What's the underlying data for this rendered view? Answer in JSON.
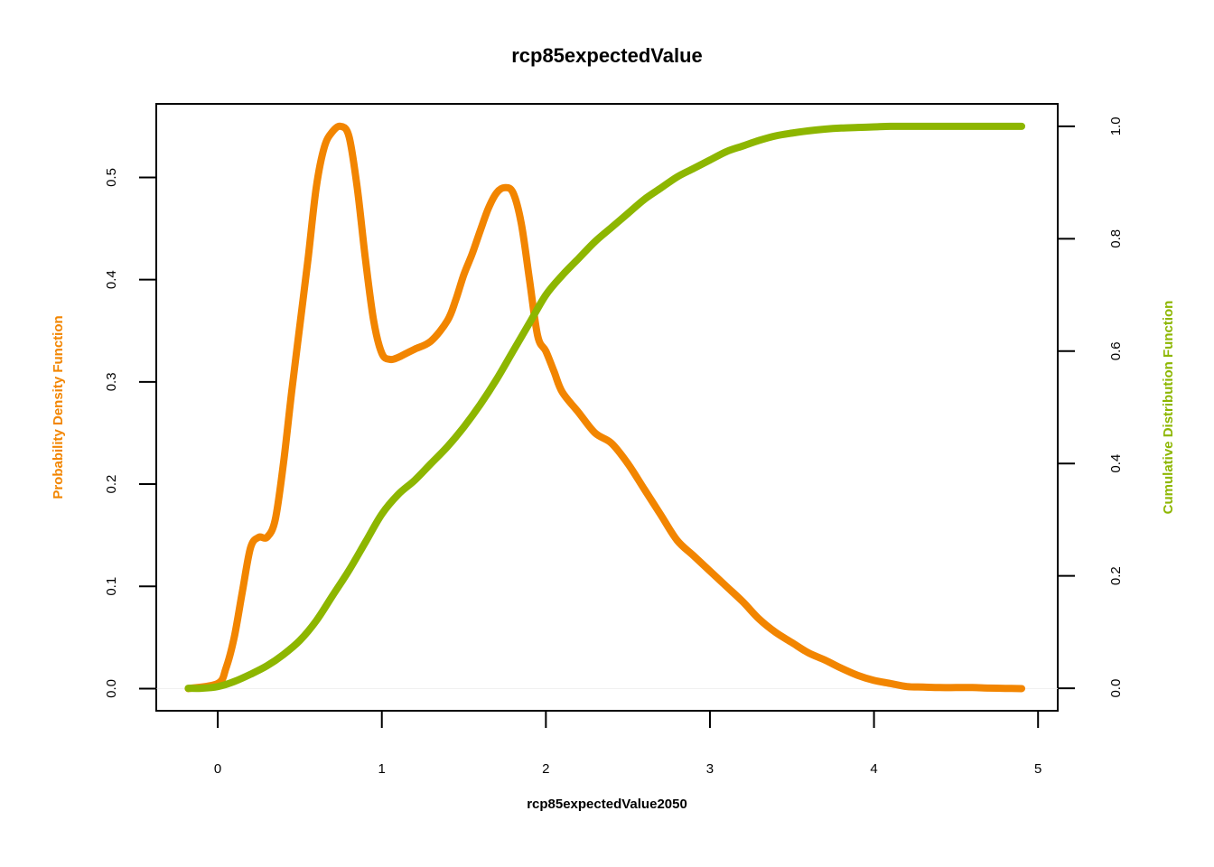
{
  "chart_data": {
    "type": "line",
    "title": "rcp85expectedValue",
    "xlabel": "rcp85expectedValue2050",
    "ylabel_left": "Probability Density Function",
    "ylabel_right": "Cumulative Distribution Function",
    "xlim": [
      -0.375,
      5.12
    ],
    "ylim_left": [
      -0.0217,
      0.572
    ],
    "ylim_right": [
      -0.04,
      1.04
    ],
    "x_ticks": [
      0,
      1,
      2,
      3,
      4,
      5
    ],
    "y_left_ticks": [
      0.0,
      0.1,
      0.2,
      0.3,
      0.4,
      0.5
    ],
    "y_right_ticks": [
      0.0,
      0.2,
      0.4,
      0.6,
      0.8,
      1.0
    ],
    "grid": false,
    "series": [
      {
        "name": "Probability Density Function",
        "axis": "left",
        "color": "#F28500",
        "x": [
          -0.18,
          0.0,
          0.05,
          0.1,
          0.15,
          0.2,
          0.25,
          0.3,
          0.35,
          0.4,
          0.45,
          0.5,
          0.55,
          0.6,
          0.65,
          0.7,
          0.75,
          0.8,
          0.85,
          0.9,
          0.95,
          1.0,
          1.05,
          1.1,
          1.15,
          1.2,
          1.3,
          1.4,
          1.45,
          1.5,
          1.55,
          1.6,
          1.65,
          1.7,
          1.75,
          1.8,
          1.85,
          1.9,
          1.95,
          2.0,
          2.05,
          2.1,
          2.2,
          2.3,
          2.4,
          2.5,
          2.6,
          2.7,
          2.8,
          2.9,
          3.0,
          3.1,
          3.2,
          3.3,
          3.4,
          3.5,
          3.6,
          3.7,
          3.8,
          3.9,
          4.0,
          4.1,
          4.2,
          4.3,
          4.4,
          4.5,
          4.6,
          4.7,
          4.8,
          4.9
        ],
        "y": [
          0.0,
          0.005,
          0.02,
          0.05,
          0.095,
          0.138,
          0.148,
          0.148,
          0.165,
          0.22,
          0.29,
          0.355,
          0.42,
          0.49,
          0.53,
          0.545,
          0.55,
          0.54,
          0.49,
          0.42,
          0.36,
          0.328,
          0.322,
          0.324,
          0.328,
          0.332,
          0.34,
          0.36,
          0.38,
          0.405,
          0.425,
          0.448,
          0.47,
          0.485,
          0.49,
          0.485,
          0.455,
          0.4,
          0.345,
          0.33,
          0.31,
          0.29,
          0.27,
          0.25,
          0.24,
          0.22,
          0.195,
          0.17,
          0.145,
          0.13,
          0.115,
          0.1,
          0.085,
          0.068,
          0.055,
          0.045,
          0.035,
          0.028,
          0.02,
          0.013,
          0.008,
          0.005,
          0.002,
          0.0015,
          0.001,
          0.001,
          0.001,
          0.0005,
          0.0002,
          0.0
        ],
        "line_width": 8
      },
      {
        "name": "Cumulative Distribution Function",
        "axis": "right",
        "color": "#8DB600",
        "x": [
          -0.18,
          -0.1,
          0.0,
          0.1,
          0.2,
          0.3,
          0.4,
          0.5,
          0.6,
          0.7,
          0.8,
          0.9,
          1.0,
          1.1,
          1.2,
          1.3,
          1.4,
          1.5,
          1.6,
          1.7,
          1.8,
          1.9,
          2.0,
          2.1,
          2.2,
          2.3,
          2.4,
          2.5,
          2.6,
          2.7,
          2.8,
          2.9,
          3.0,
          3.1,
          3.2,
          3.3,
          3.4,
          3.5,
          3.6,
          3.7,
          3.8,
          3.9,
          4.0,
          4.1,
          4.2,
          4.3,
          4.4,
          4.5,
          4.6,
          4.7,
          4.8,
          4.9
        ],
        "y": [
          0.0,
          0.0,
          0.003,
          0.012,
          0.025,
          0.04,
          0.06,
          0.085,
          0.12,
          0.165,
          0.21,
          0.26,
          0.31,
          0.345,
          0.37,
          0.4,
          0.43,
          0.465,
          0.505,
          0.55,
          0.6,
          0.65,
          0.7,
          0.735,
          0.765,
          0.795,
          0.82,
          0.845,
          0.87,
          0.89,
          0.91,
          0.925,
          0.94,
          0.955,
          0.965,
          0.975,
          0.983,
          0.988,
          0.992,
          0.995,
          0.997,
          0.998,
          0.999,
          1.0,
          1.0,
          1.0,
          1.0,
          1.0,
          1.0,
          1.0,
          1.0,
          1.0
        ],
        "line_width": 8
      }
    ]
  }
}
